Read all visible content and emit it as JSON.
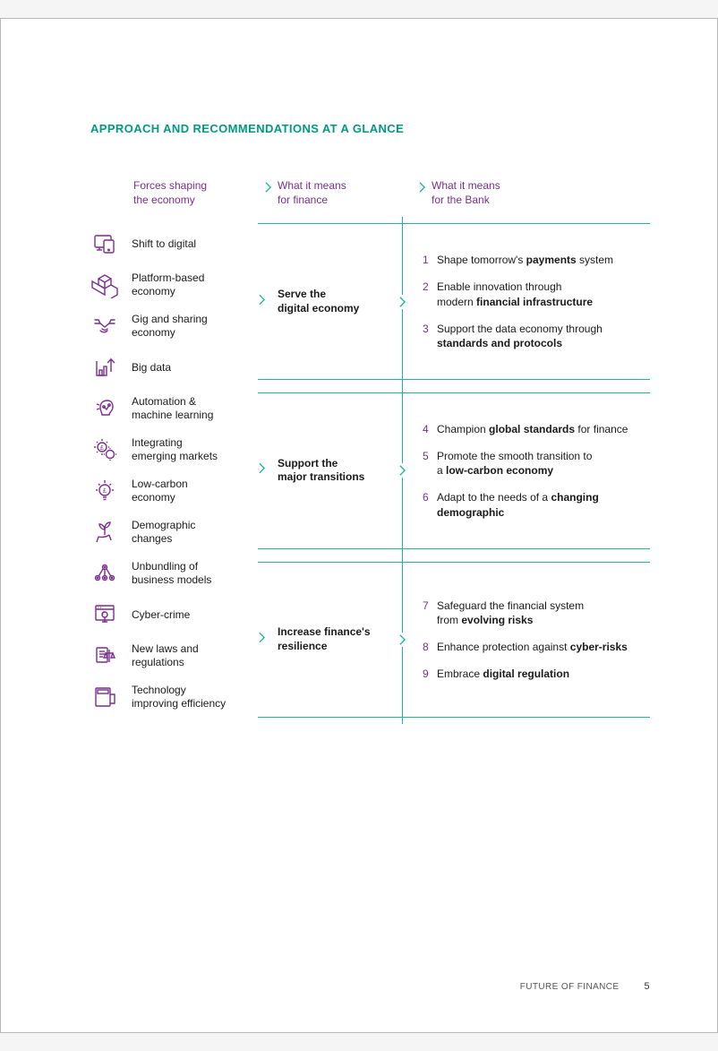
{
  "colors": {
    "teal": "#20b59a",
    "teal_dark": "#009a80",
    "purple": "#7a2e8e",
    "text": "#1a1a1a",
    "page_bg": "#ffffff",
    "border": "#b8b8b8"
  },
  "typography": {
    "title_fontsize": 13,
    "header_fontsize": 12,
    "body_fontsize": 12,
    "footer_fontsize": 10
  },
  "title": "APPROACH AND RECOMMENDATIONS AT A GLANCE",
  "headers": {
    "col1": "Forces shaping\nthe economy",
    "col2": "What it means\nfor finance",
    "col3": "What it means\nfor the Bank"
  },
  "forces": [
    {
      "icon": "devices",
      "label": "Shift to digital"
    },
    {
      "icon": "boxes",
      "label": "Platform-based\neconomy"
    },
    {
      "icon": "handshake",
      "label": "Gig and sharing\neconomy"
    },
    {
      "icon": "bigdata",
      "label": "Big data"
    },
    {
      "icon": "ai",
      "label": "Automation &\nmachine learning"
    },
    {
      "icon": "gears",
      "label": "Integrating\nemerging markets"
    },
    {
      "icon": "bulb",
      "label": "Low-carbon\neconomy"
    },
    {
      "icon": "plant",
      "label": "Demographic\nchanges"
    },
    {
      "icon": "network",
      "label": "Unbundling of\nbusiness models"
    },
    {
      "icon": "cyber",
      "label": "Cyber-crime"
    },
    {
      "icon": "scales",
      "label": "New laws and\nregulations"
    },
    {
      "icon": "calculator",
      "label": "Technology\nimproving efficiency"
    }
  ],
  "pillars": [
    {
      "label": "Serve the\ndigital economy",
      "force_span": 4,
      "recs": [
        {
          "n": "1",
          "html": "Shape tomorrow's <b>payments</b> system"
        },
        {
          "n": "2",
          "html": "Enable innovation through\nmodern <b>financial infrastructure</b>"
        },
        {
          "n": "3",
          "html": "Support the data economy through\n<b>standards and protocols</b>"
        }
      ]
    },
    {
      "label": "Support the\nmajor transitions",
      "force_span": 4,
      "recs": [
        {
          "n": "4",
          "html": "Champion <b>global standards</b> for finance"
        },
        {
          "n": "5",
          "html": "Promote the smooth transition to\na <b>low-carbon economy</b>"
        },
        {
          "n": "6",
          "html": "Adapt to the needs of a <b>changing\ndemographic</b>"
        }
      ]
    },
    {
      "label": "Increase finance's\nresilience",
      "force_span": 4,
      "recs": [
        {
          "n": "7",
          "html": "Safeguard the financial system\nfrom <b>evolving risks</b>"
        },
        {
          "n": "8",
          "html": "Enhance protection against <b>cyber-risks</b>"
        },
        {
          "n": "9",
          "html": "Embrace <b>digital regulation</b>"
        }
      ]
    }
  ],
  "footer": {
    "label": "FUTURE OF FINANCE",
    "page": "5"
  },
  "icons_svg": {
    "devices": "<g stroke='#7a2e8e' stroke-width='1.4' fill='none'><rect x='4' y='6' width='18' height='13' rx='1.5'/><rect x='14' y='11' width='11' height='14' rx='1.5' fill='#fff'/><circle cx='19.5' cy='22' r='0.8' fill='#7a2e8e'/><line x1='9' y1='19' x2='9' y2='22'/><line x1='6' y1='22' x2='12' y2='22'/></g>",
    "boxes": "<g stroke='#7a2e8e' stroke-width='1.4' fill='none'><path d='M15 4 L22 8 L22 15 L15 19 L8 15 L8 8 Z'/><path d='M8 8 L15 12 L22 8'/><path d='M15 12 L15 19'/><path d='M8 15 L15 19 L15 26 L8 22 L1 18 L1 11 L8 15'/><path d='M22 15 L29 19 L29 26 L22 30'/></g>",
    "handshake": "<g stroke='#7a2e8e' stroke-width='1.4' fill='none' stroke-linecap='round'><path d='M4 12 L10 12 L15 16 L20 12 L26 12'/><path d='M10 12 L8 8 L4 8'/><path d='M20 12 L22 8 L26 8'/><path d='M12 18 C12 18 15 21 18 18'/><path d='M10 20 C10 20 14 24 18 20'/></g>",
    "bigdata": "<g stroke='#7a2e8e' stroke-width='1.4' fill='none'><path d='M6 8 L6 24 L14 24'/><rect x='9' y='18' width='3' height='6'/><rect x='14' y='14' width='3' height='10'/><path d='M18 10 L22 6 L26 10 L22 6 L22 20'/></g>",
    "ai": "<g stroke='#7a2e8e' stroke-width='1.4' fill='none'><path d='M18 6 C12 6 10 10 10 14 C10 18 12 19 12 22 L20 22 C20 19 24 18 24 13 C24 9 22 6 18 6 Z'/><circle cx='14' cy='13' r='1.2'/><circle cx='20' cy='11' r='1.2'/><path d='M14 13 L17 16 L20 11'/><line x1='6' y1='10' x2='9' y2='11'/><line x1='6' y1='16' x2='9' y2='15'/></g>",
    "gears": "<g stroke='#7a2e8e' stroke-width='1.4' fill='none'><circle cx='12' cy='12' r='5'/><text x='12' y='15' font-size='7' text-anchor='middle' fill='#7a2e8e' stroke='none'>£</text><circle cx='21' cy='20' r='4.5'/><path d='M12 5 L12 3 M12 19 L12 21 M5 12 L3 12 M19 12 L20 12 M7 7 L6 6 M17 7 L18 6 M7 17 L6 18'/><path d='M21 14 L21 13 M21 26 L21 27 M15 20 L14 20 M27 20 L28 20'/></g>",
    "bulb": "<g stroke='#7a2e8e' stroke-width='1.4' fill='none'><circle cx='15' cy='14' r='6'/><text x='15' y='17' font-size='7' text-anchor='middle' fill='#7a2e8e' stroke='none'>£</text><line x1='13' y1='22' x2='17' y2='22'/><line x1='13.5' y1='24.5' x2='16.5' y2='24.5'/><line x1='15' y1='3' x2='15' y2='6'/><line x1='5' y1='14' x2='7' y2='14'/><line x1='23' y1='14' x2='25' y2='14'/><line x1='8' y1='7' x2='9.5' y2='8.5'/><line x1='22' y1='7' x2='20.5' y2='8.5'/></g>",
    "plant": "<g stroke='#7a2e8e' stroke-width='1.4' fill='none'><path d='M8 20 C8 20 14 22 20 18'/><path d='M15 18 C15 14 15 10 15 8'/><path d='M15 12 C11 12 9 8 9 6 C13 6 15 10 15 12'/><path d='M15 10 C19 10 21 6 21 4 C17 4 15 8 15 10'/><path d='M8 20 L6 26 M20 18 L22 24'/></g>",
    "network": "<g stroke='#7a2e8e' stroke-width='1.4' fill='none'><circle cx='15' cy='8' r='2.5'/><circle cx='7' cy='20' r='2.5'/><circle cx='15' cy='20' r='2.5'/><circle cx='23' cy='20' r='2.5'/><path d='M15 10.5 L15 17.5 M13 10 L8.5 17.5 M17 10 L21.5 17.5'/><circle cx='15' cy='8' r='0.7' fill='#7a2e8e'/><circle cx='7' cy='20' r='0.7' fill='#7a2e8e'/><circle cx='15' cy='20' r='0.7' fill='#7a2e8e'/><circle cx='23' cy='20' r='0.7' fill='#7a2e8e'/></g>",
    "cyber": "<g stroke='#7a2e8e' stroke-width='1.4' fill='none'><rect x='5' y='5' width='20' height='16' rx='1'/><line x1='5' y1='9' x2='25' y2='9'/><circle cx='8' cy='7' r='0.6' fill='#7a2e8e' stroke='none'/><circle cx='10.5' cy='7' r='0.6' fill='#7a2e8e' stroke='none'/><circle cx='15' cy='15' r='3'/><path d='M15 12 C12 12 12 14 13 15 M15 18 L15 23 M12 23 L18 23'/></g>",
    "scales": "<g stroke='#7a2e8e' stroke-width='1.4' fill='none'><rect x='6' y='6' width='12' height='16' rx='1'/><line x1='9' y1='10' x2='15' y2='10'/><line x1='9' y1='13' x2='15' y2='13'/><line x1='9' y1='16' x2='13' y2='16'/><path d='M20 8 L20 22 M16 12 L24 12 M16 12 L14 17 L18 17 Z M24 12 L22 17 L26 17 Z'/></g>",
    "calculator": "<g stroke='#7a2e8e' stroke-width='1.4' fill='none'><rect x='5' y='5' width='16' height='20' rx='1'/><rect x='7' y='7' width='12' height='4'/><line x1='9' y1='15' x2='9' y2='15.1'/><line x1='13' y1='15' x2='13' y2='15.1'/><line x1='17' y1='15' x2='17' y2='15.1'/><line x1='9' y1='19' x2='9' y2='19.1'/><line x1='13' y1='19' x2='13' y2='19.1'/><line x1='17' y1='19' x2='17' y2='19.1'/><path d='M21 12 L26 12 L26 22 L21 22' /></g>"
  }
}
